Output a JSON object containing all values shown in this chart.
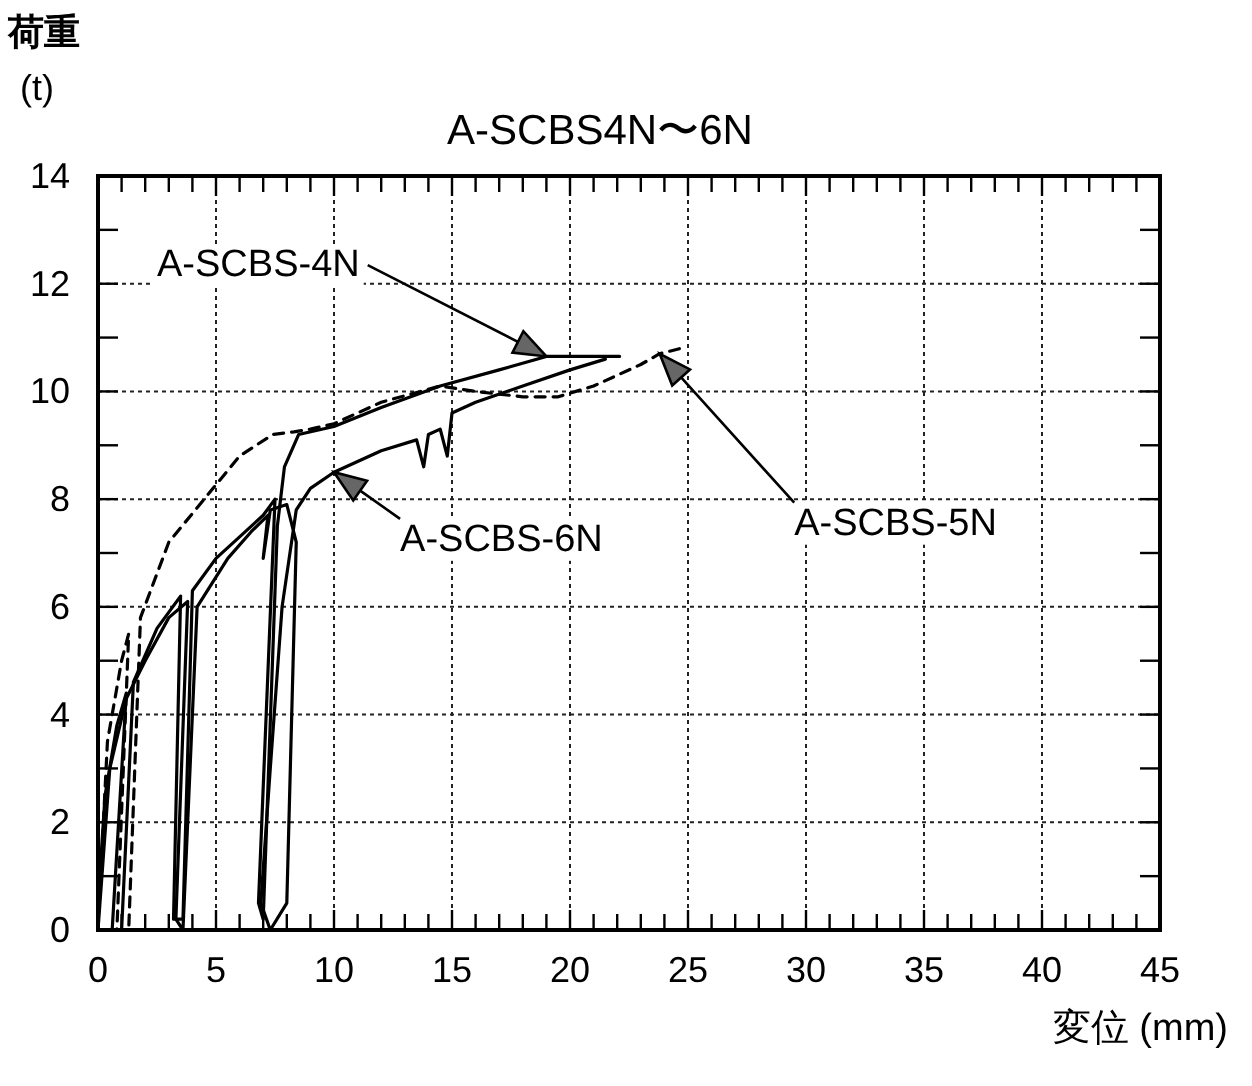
{
  "chart_data": {
    "type": "line",
    "title": "A-SCBS4N〜6N",
    "xlabel": "変位 (mm)",
    "ylabel": "荷重 (t)",
    "xlim": [
      0,
      45
    ],
    "ylim": [
      0,
      14
    ],
    "xticks": [
      0,
      5,
      10,
      15,
      20,
      25,
      30,
      35,
      40,
      45
    ],
    "yticks": [
      0,
      2,
      4,
      6,
      8,
      10,
      12,
      14
    ],
    "grid": true,
    "marker": "none",
    "series": [
      {
        "name": "A-SCBS-4N",
        "color": "#000000",
        "line_style": "solid",
        "x": [
          0,
          0.3,
          0.8,
          1.2,
          0.6,
          1.0,
          1.5,
          2.5,
          3.5,
          3.2,
          3.6,
          4.0,
          5.0,
          6.0,
          7.0,
          7.5,
          6.8,
          7.0,
          7.6,
          7.9,
          8.5,
          10,
          12,
          14.5,
          17,
          19,
          22.1
        ],
        "values": [
          0.5,
          2.5,
          3.8,
          4.4,
          0,
          0,
          4.6,
          5.6,
          6.2,
          0.2,
          0.2,
          6.3,
          6.9,
          7.3,
          7.7,
          8.0,
          0.5,
          0.2,
          7.5,
          8.6,
          9.2,
          9.35,
          9.7,
          10.1,
          10.4,
          10.65,
          10.65
        ]
      },
      {
        "name": "A-SCBS-5N",
        "color": "#000000",
        "line_style": "dashed",
        "x": [
          0,
          0.4,
          1.0,
          1.3,
          0.8,
          1.3,
          1.8,
          3,
          4.5,
          6,
          7.4,
          8.3,
          9,
          10,
          12,
          14.5,
          16,
          18,
          19.5,
          21,
          23,
          23.8,
          24.7
        ],
        "values": [
          0,
          3.5,
          5.0,
          5.5,
          0,
          0,
          5.8,
          7.2,
          8.0,
          8.8,
          9.2,
          9.25,
          9.3,
          9.4,
          9.8,
          10.1,
          10.0,
          9.9,
          9.9,
          10.1,
          10.5,
          10.7,
          10.8
        ]
      },
      {
        "name": "A-SCBS-6N",
        "color": "#000000",
        "line_style": "solid",
        "x": [
          0,
          0.5,
          1.2,
          2,
          3.0,
          3.8,
          3.3,
          3.6,
          4.2,
          5.5,
          6.5,
          7.2,
          7.0,
          7.3,
          8.0,
          8.4,
          8.0,
          7.3,
          6.9,
          7.3,
          7.8,
          8.4,
          9,
          10,
          12,
          13.5,
          13.8,
          14.0,
          14.5,
          14.8,
          15,
          16,
          18,
          20,
          21.5
        ],
        "values": [
          0,
          3.0,
          4.3,
          5.0,
          5.8,
          6.1,
          0.2,
          0,
          6.0,
          6.9,
          7.4,
          7.7,
          6.9,
          7.8,
          7.9,
          7.2,
          0.5,
          0,
          0.5,
          3,
          6,
          7.8,
          8.2,
          8.5,
          8.9,
          9.1,
          8.6,
          9.2,
          9.3,
          8.8,
          9.6,
          9.8,
          10.1,
          10.4,
          10.6
        ]
      }
    ]
  }
}
